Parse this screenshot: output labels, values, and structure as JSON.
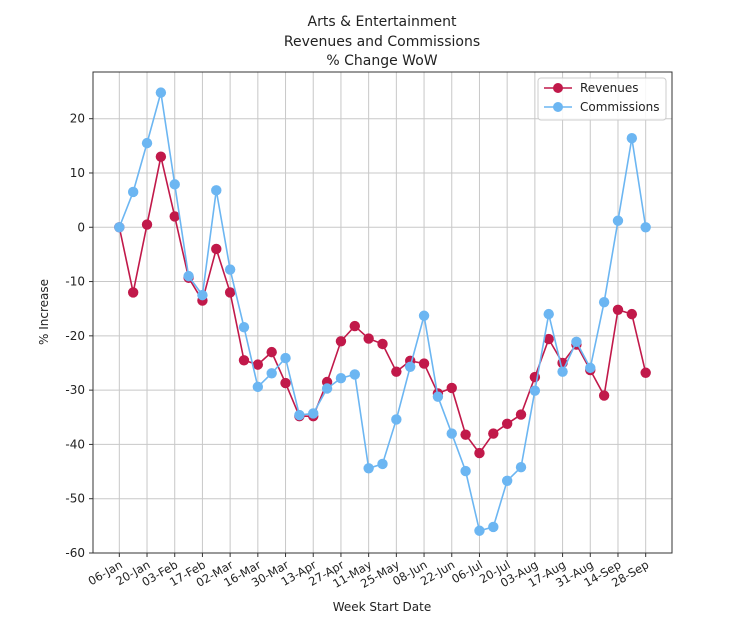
{
  "chart_data": {
    "type": "line",
    "title": [
      "Arts & Entertainment",
      "Revenues and Commissions",
      "% Change WoW"
    ],
    "xlabel": "Week Start Date",
    "ylabel": "% Increase",
    "ylim": [
      -60,
      28.6
    ],
    "xlim": [
      -1.9,
      39.9
    ],
    "yticks": [
      20,
      10,
      0,
      -10,
      -20,
      -30,
      -40,
      -50,
      -60
    ],
    "xtick_labels": [
      "06-Jan",
      "20-Jan",
      "03-Feb",
      "17-Feb",
      "02-Mar",
      "16-Mar",
      "30-Mar",
      "13-Apr",
      "27-Apr",
      "11-May",
      "25-May",
      "08-Jun",
      "22-Jun",
      "06-Jul",
      "20-Jul",
      "03-Aug",
      "17-Aug",
      "31-Aug",
      "14-Sep",
      "28-Sep"
    ],
    "xtick_step_weeks": 2,
    "grid": true,
    "legend_position": "top-right",
    "series": [
      {
        "name": "Revenues",
        "color": "#c1194a",
        "values": [
          0,
          -12,
          0.5,
          13,
          2,
          -9.3,
          -13.5,
          -4,
          -12,
          -24.5,
          -25.3,
          -23,
          -28.7,
          -34.8,
          -34.8,
          -28.5,
          -21,
          -18.2,
          -20.5,
          -21.5,
          -26.6,
          -24.6,
          -25.1,
          -30.6,
          -29.6,
          -38.2,
          -41.6,
          -38,
          -36.2,
          -34.5,
          -27.6,
          -20.6,
          -25,
          -21.6,
          -26.3,
          -31,
          -15.2,
          -16,
          -26.8
        ]
      },
      {
        "name": "Commissions",
        "color": "#6cb6f2",
        "values": [
          0,
          6.5,
          15.5,
          24.8,
          7.9,
          -9,
          -12.5,
          6.8,
          -7.8,
          -18.4,
          -29.4,
          -26.9,
          -24.1,
          -34.6,
          -34.3,
          -29.7,
          -27.8,
          -27.1,
          -44.4,
          -43.6,
          -35.4,
          -25.7,
          -16.3,
          -31.2,
          -38,
          -44.9,
          -55.9,
          -55.2,
          -46.7,
          -44.2,
          -30.1,
          -16,
          -26.6,
          -21.1,
          -25.9,
          -13.8,
          1.2,
          16.4,
          0
        ]
      }
    ]
  }
}
